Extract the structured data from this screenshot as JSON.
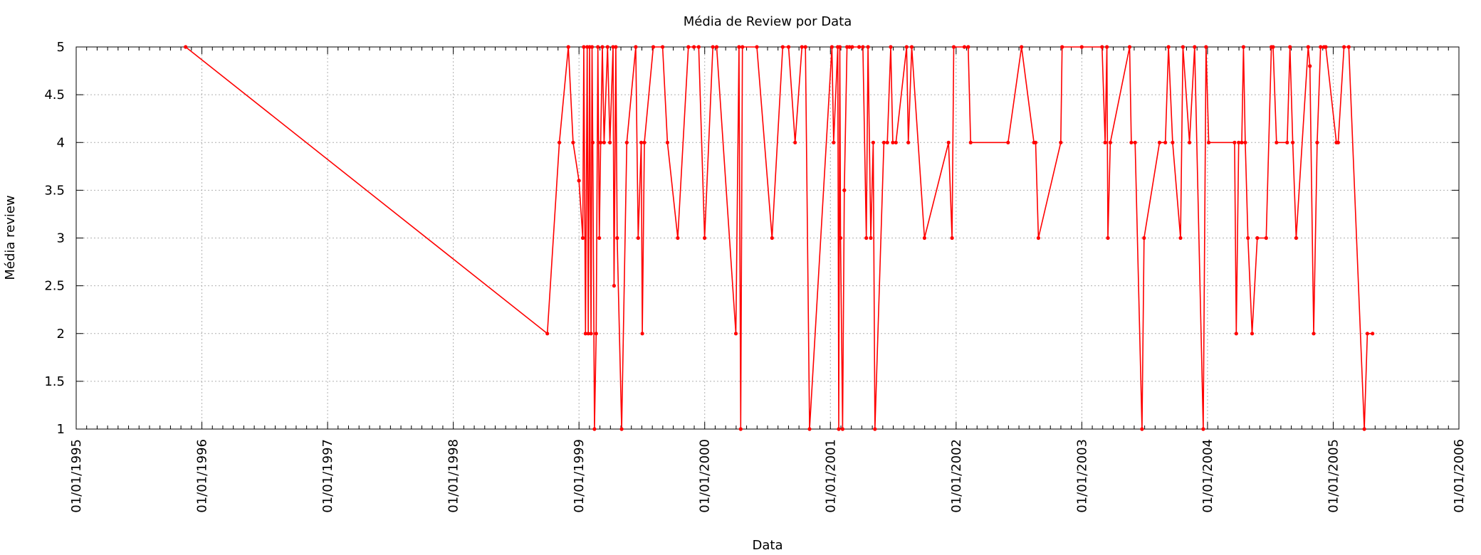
{
  "chart_data": {
    "type": "line",
    "title": "Média de Review por Data",
    "xlabel": "Data",
    "ylabel": "Média review",
    "x_type": "date",
    "xlim": [
      "1995-01-01",
      "2006-01-01"
    ],
    "ylim": [
      1,
      5
    ],
    "x_ticks": [
      "01/01/1995",
      "01/01/1996",
      "01/01/1997",
      "01/01/1998",
      "01/01/1999",
      "01/01/2000",
      "01/01/2001",
      "01/01/2002",
      "01/01/2003",
      "01/01/2004",
      "01/01/2005",
      "01/01/2006"
    ],
    "y_ticks": [
      "1",
      "1.5",
      "2",
      "2.5",
      "3",
      "3.5",
      "4",
      "4.5",
      "5"
    ],
    "grid": true,
    "legend": "none",
    "series_color": "#ff0000",
    "series": [
      {
        "points": [
          [
            "1995-11-15",
            5
          ],
          [
            "1998-10-01",
            2
          ],
          [
            "1998-11-05",
            4
          ],
          [
            "1998-12-01",
            5
          ],
          [
            "1998-12-15",
            4
          ],
          [
            "1999-01-01",
            3.6
          ],
          [
            "1999-01-12",
            3
          ],
          [
            "1999-01-15",
            5
          ],
          [
            "1999-01-20",
            2
          ],
          [
            "1999-01-25",
            5
          ],
          [
            "1999-01-28",
            2
          ],
          [
            "1999-02-01",
            5
          ],
          [
            "1999-02-05",
            2
          ],
          [
            "1999-02-08",
            5
          ],
          [
            "1999-02-10",
            4
          ],
          [
            "1999-02-15",
            1
          ],
          [
            "1999-02-20",
            2
          ],
          [
            "1999-02-25",
            5
          ],
          [
            "1999-03-01",
            3
          ],
          [
            "1999-03-05",
            4
          ],
          [
            "1999-03-10",
            5
          ],
          [
            "1999-03-15",
            4
          ],
          [
            "1999-03-25",
            5
          ],
          [
            "1999-04-01",
            4
          ],
          [
            "1999-04-10",
            5
          ],
          [
            "1999-04-13",
            2.5
          ],
          [
            "1999-04-18",
            5
          ],
          [
            "1999-04-22",
            3
          ],
          [
            "1999-05-05",
            1
          ],
          [
            "1999-05-20",
            4
          ],
          [
            "1999-06-15",
            5
          ],
          [
            "1999-06-22",
            3
          ],
          [
            "1999-07-01",
            4
          ],
          [
            "1999-07-04",
            2
          ],
          [
            "1999-07-10",
            4
          ],
          [
            "1999-08-05",
            5
          ],
          [
            "1999-09-01",
            5
          ],
          [
            "1999-09-15",
            4
          ],
          [
            "1999-10-15",
            3
          ],
          [
            "1999-11-15",
            5
          ],
          [
            "1999-12-01",
            5
          ],
          [
            "1999-12-15",
            5
          ],
          [
            "2000-01-01",
            3
          ],
          [
            "2000-01-25",
            5
          ],
          [
            "2000-02-05",
            5
          ],
          [
            "2000-04-01",
            2
          ],
          [
            "2000-04-10",
            5
          ],
          [
            "2000-04-15",
            1
          ],
          [
            "2000-04-20",
            5
          ],
          [
            "2000-06-01",
            5
          ],
          [
            "2000-07-15",
            3
          ],
          [
            "2000-08-15",
            5
          ],
          [
            "2000-09-01",
            5
          ],
          [
            "2000-09-20",
            4
          ],
          [
            "2000-10-10",
            5
          ],
          [
            "2000-10-20",
            5
          ],
          [
            "2000-11-01",
            1
          ],
          [
            "2001-01-05",
            5
          ],
          [
            "2001-01-10",
            4
          ],
          [
            "2001-01-22",
            5
          ],
          [
            "2001-01-25",
            1
          ],
          [
            "2001-01-28",
            5
          ],
          [
            "2001-01-30",
            3
          ],
          [
            "2001-02-05",
            1
          ],
          [
            "2001-02-10",
            3.5
          ],
          [
            "2001-02-18",
            5
          ],
          [
            "2001-02-25",
            5
          ],
          [
            "2001-03-05",
            5
          ],
          [
            "2001-03-25",
            5
          ],
          [
            "2001-04-05",
            5
          ],
          [
            "2001-04-15",
            3
          ],
          [
            "2001-04-20",
            5
          ],
          [
            "2001-04-28",
            3
          ],
          [
            "2001-05-05",
            4
          ],
          [
            "2001-05-10",
            1
          ],
          [
            "2001-06-05",
            4
          ],
          [
            "2001-06-15",
            4
          ],
          [
            "2001-06-25",
            5
          ],
          [
            "2001-07-01",
            4
          ],
          [
            "2001-07-10",
            4
          ],
          [
            "2001-08-10",
            5
          ],
          [
            "2001-08-15",
            4
          ],
          [
            "2001-08-25",
            5
          ],
          [
            "2001-10-01",
            3
          ],
          [
            "2001-12-10",
            4
          ],
          [
            "2001-12-20",
            3
          ],
          [
            "2001-12-25",
            5
          ],
          [
            "2002-01-25",
            5
          ],
          [
            "2002-02-05",
            5
          ],
          [
            "2002-02-12",
            4
          ],
          [
            "2002-06-01",
            4
          ],
          [
            "2002-07-10",
            5
          ],
          [
            "2002-08-15",
            4
          ],
          [
            "2002-08-20",
            4
          ],
          [
            "2002-08-28",
            3
          ],
          [
            "2002-11-01",
            4
          ],
          [
            "2002-11-05",
            5
          ],
          [
            "2003-01-01",
            5
          ],
          [
            "2003-03-01",
            5
          ],
          [
            "2003-03-10",
            4
          ],
          [
            "2003-03-15",
            5
          ],
          [
            "2003-03-18",
            3
          ],
          [
            "2003-03-25",
            4
          ],
          [
            "2003-05-20",
            5
          ],
          [
            "2003-05-25",
            4
          ],
          [
            "2003-06-05",
            4
          ],
          [
            "2003-06-25",
            1
          ],
          [
            "2003-07-01",
            3
          ],
          [
            "2003-08-15",
            4
          ],
          [
            "2003-09-01",
            4
          ],
          [
            "2003-09-10",
            5
          ],
          [
            "2003-09-22",
            4
          ],
          [
            "2003-10-15",
            3
          ],
          [
            "2003-10-22",
            5
          ],
          [
            "2003-11-10",
            4
          ],
          [
            "2003-11-25",
            5
          ],
          [
            "2003-12-20",
            1
          ],
          [
            "2003-12-28",
            5
          ],
          [
            "2004-01-05",
            4
          ],
          [
            "2004-03-20",
            4
          ],
          [
            "2004-03-25",
            2
          ],
          [
            "2004-04-01",
            4
          ],
          [
            "2004-04-10",
            4
          ],
          [
            "2004-04-15",
            5
          ],
          [
            "2004-04-20",
            4
          ],
          [
            "2004-04-28",
            3
          ],
          [
            "2004-05-10",
            2
          ],
          [
            "2004-05-25",
            3
          ],
          [
            "2004-06-20",
            3
          ],
          [
            "2004-07-05",
            5
          ],
          [
            "2004-07-10",
            5
          ],
          [
            "2004-07-20",
            4
          ],
          [
            "2004-08-20",
            4
          ],
          [
            "2004-08-28",
            5
          ],
          [
            "2004-09-05",
            4
          ],
          [
            "2004-09-15",
            3
          ],
          [
            "2004-10-20",
            5
          ],
          [
            "2004-10-25",
            4.8
          ],
          [
            "2004-11-05",
            2
          ],
          [
            "2004-11-15",
            4
          ],
          [
            "2004-11-25",
            5
          ],
          [
            "2004-12-05",
            5
          ],
          [
            "2004-12-10",
            5
          ],
          [
            "2005-01-10",
            4
          ],
          [
            "2005-01-15",
            4
          ],
          [
            "2005-02-01",
            5
          ],
          [
            "2005-02-15",
            5
          ],
          [
            "2005-04-01",
            1
          ],
          [
            "2005-04-10",
            2
          ],
          [
            "2005-04-25",
            2
          ]
        ]
      }
    ]
  }
}
